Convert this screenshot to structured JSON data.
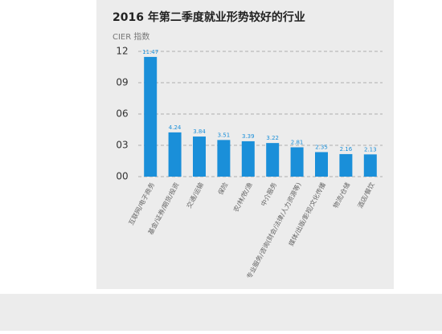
{
  "chart_data": {
    "type": "bar",
    "title": "2016 年第二季度就业形势较好的行业",
    "y_label": "CIER 指数",
    "categories": [
      "互联网/电子商务",
      "基金/证券/期货/投资",
      "交通/运输",
      "保险",
      "农/林/牧/渔",
      "中介服务",
      "专业服务/咨询(财会/法律/人力资源等)",
      "媒体/出版/影视/文化传播",
      "物流/仓储",
      "酒店/餐饮"
    ],
    "values": [
      11.47,
      4.24,
      3.84,
      3.51,
      3.39,
      3.22,
      2.81,
      2.35,
      2.16,
      2.13
    ],
    "color": "#1a8fd9",
    "ylim": [
      0,
      12
    ],
    "yticks": [
      {
        "value": 0,
        "label": "00"
      },
      {
        "value": 3,
        "label": "03"
      },
      {
        "value": 6,
        "label": "06"
      },
      {
        "value": 9,
        "label": "09"
      },
      12
    ],
    "grid": true
  }
}
